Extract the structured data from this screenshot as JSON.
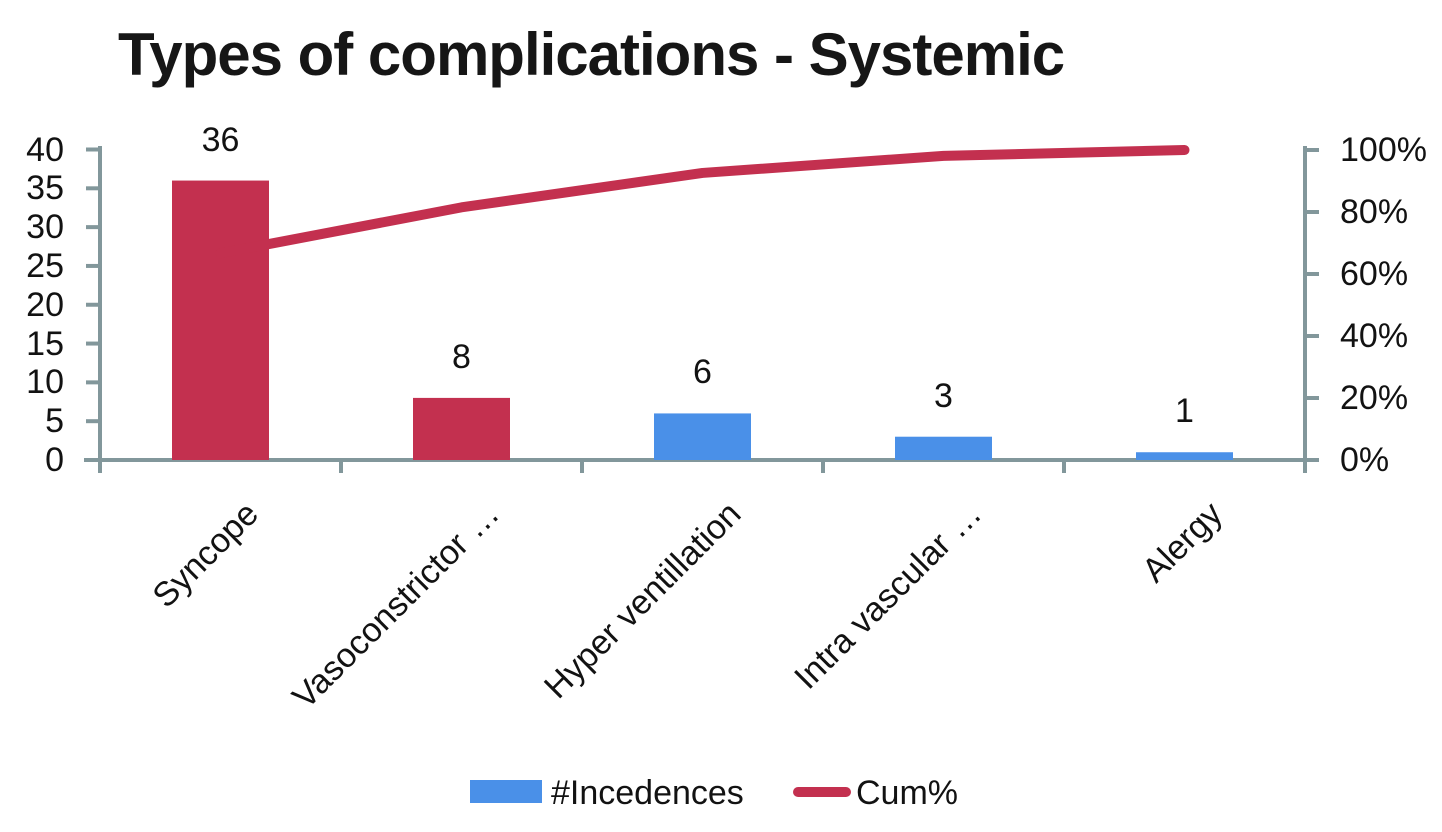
{
  "title": "Types of complications - Systemic",
  "colors": {
    "bar_red": "#C3304F",
    "bar_blue": "#4A90E8",
    "line_red": "#C3304F",
    "axis": "#82979B",
    "text": "#121212"
  },
  "chart_data": {
    "type": "bar",
    "subtype": "pareto (clustered column + cumulative % line)",
    "title": "Types of complications - Systemic",
    "categories": [
      "Syncope",
      "Vasoconstrictor …",
      "Hyper ventillation",
      "Intra vascular …",
      "Alergy"
    ],
    "series": [
      {
        "name": "#Incedences",
        "type": "bar",
        "values": [
          36,
          8,
          6,
          3,
          1
        ],
        "data_labels": [
          "36",
          "8",
          "6",
          "3",
          "1"
        ],
        "bar_colors": [
          "#C3304F",
          "#C3304F",
          "#4A90E8",
          "#4A90E8",
          "#4A90E8"
        ]
      },
      {
        "name": "Cum%",
        "type": "line",
        "values_pct": [
          66.7,
          81.5,
          92.6,
          98.1,
          100
        ],
        "color": "#C3304F"
      }
    ],
    "left_axis": {
      "min": 0,
      "max": 40,
      "ticks": [
        0,
        5,
        10,
        15,
        20,
        25,
        30,
        35,
        40
      ]
    },
    "right_axis": {
      "min": 0,
      "max": 100,
      "ticks": [
        0,
        20,
        40,
        60,
        80,
        100
      ],
      "suffix": "%"
    },
    "legend": [
      {
        "label": "#Incedences",
        "swatch": "bar",
        "color": "#4A90E8"
      },
      {
        "label": "Cum%",
        "swatch": "line",
        "color": "#C3304F"
      }
    ],
    "grid": false,
    "legend_position": "bottom"
  }
}
